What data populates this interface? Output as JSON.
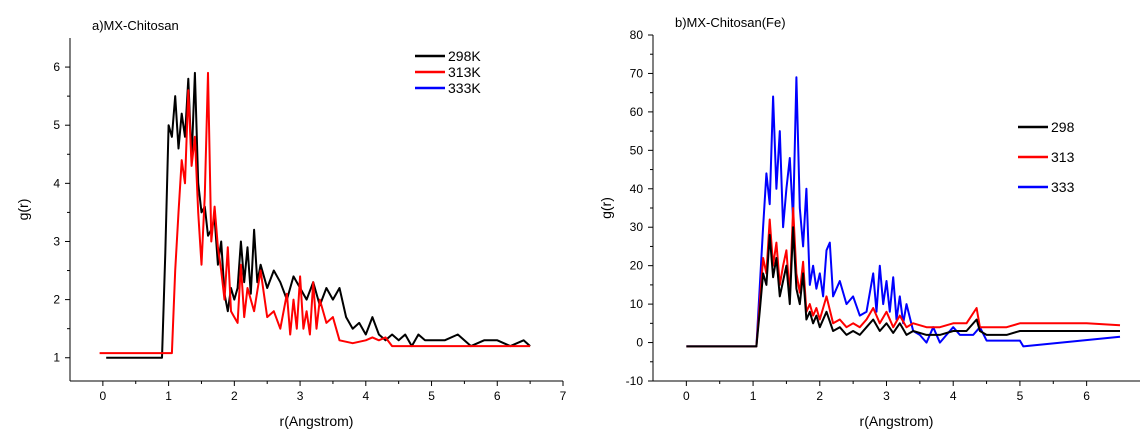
{
  "chart_data": [
    {
      "type": "line",
      "title": "a)MX-Chitosan",
      "xlabel": "r(Angstrom)",
      "ylabel": "g(r)",
      "xlim": [
        -0.5,
        7
      ],
      "ylim": [
        0.6,
        6.5
      ],
      "xticks": [
        0,
        1,
        2,
        3,
        4,
        5,
        6,
        7
      ],
      "yticks": [
        1,
        2,
        3,
        4,
        5,
        6
      ],
      "legend_position": "top-right",
      "series": [
        {
          "name": "298K",
          "color": "#000000",
          "x": [
            0.05,
            0.9,
            0.95,
            1.0,
            1.05,
            1.1,
            1.15,
            1.2,
            1.25,
            1.3,
            1.35,
            1.4,
            1.45,
            1.5,
            1.55,
            1.6,
            1.65,
            1.7,
            1.75,
            1.8,
            1.85,
            1.9,
            1.95,
            2.0,
            2.05,
            2.1,
            2.15,
            2.2,
            2.25,
            2.3,
            2.35,
            2.4,
            2.5,
            2.6,
            2.7,
            2.8,
            2.9,
            3.0,
            3.1,
            3.2,
            3.3,
            3.4,
            3.5,
            3.6,
            3.7,
            3.8,
            3.9,
            4.0,
            4.1,
            4.2,
            4.3,
            4.4,
            4.5,
            4.6,
            4.7,
            4.8,
            4.9,
            5.0,
            5.2,
            5.4,
            5.6,
            5.8,
            6.0,
            6.2,
            6.4,
            6.5
          ],
          "y": [
            1.0,
            1.0,
            2.8,
            5.0,
            4.8,
            5.5,
            4.6,
            5.2,
            4.8,
            5.8,
            4.4,
            5.9,
            4.0,
            3.5,
            3.6,
            3.1,
            3.2,
            3.4,
            2.6,
            3.0,
            2.1,
            1.8,
            2.2,
            2.0,
            2.2,
            3.0,
            2.3,
            2.9,
            2.1,
            3.2,
            2.3,
            2.6,
            2.2,
            2.5,
            2.3,
            2.0,
            2.4,
            2.2,
            2.0,
            2.3,
            1.9,
            2.2,
            2.0,
            2.2,
            1.7,
            1.5,
            1.6,
            1.4,
            1.7,
            1.4,
            1.3,
            1.4,
            1.3,
            1.4,
            1.2,
            1.4,
            1.3,
            1.3,
            1.3,
            1.4,
            1.2,
            1.3,
            1.3,
            1.2,
            1.3,
            1.2
          ]
        },
        {
          "name": "313K",
          "color": "#ff0000",
          "x": [
            -0.05,
            1.05,
            1.1,
            1.15,
            1.2,
            1.25,
            1.3,
            1.35,
            1.4,
            1.45,
            1.5,
            1.55,
            1.6,
            1.65,
            1.7,
            1.75,
            1.8,
            1.85,
            1.9,
            1.95,
            2.0,
            2.05,
            2.1,
            2.15,
            2.2,
            2.3,
            2.4,
            2.5,
            2.6,
            2.7,
            2.8,
            2.85,
            2.9,
            2.95,
            3.0,
            3.05,
            3.1,
            3.15,
            3.2,
            3.25,
            3.3,
            3.4,
            3.5,
            3.6,
            3.8,
            4.0,
            4.1,
            4.2,
            4.3,
            4.4,
            4.5,
            4.7,
            5.0,
            5.5,
            6.0,
            6.5
          ],
          "y": [
            1.08,
            1.08,
            2.5,
            3.5,
            4.4,
            4.0,
            5.6,
            4.3,
            4.8,
            3.5,
            2.6,
            3.8,
            5.9,
            3.0,
            3.6,
            2.9,
            2.5,
            2.0,
            2.9,
            1.8,
            1.7,
            1.6,
            2.6,
            1.7,
            2.2,
            1.8,
            2.5,
            1.7,
            1.8,
            1.5,
            2.1,
            1.4,
            2.0,
            1.5,
            2.4,
            1.5,
            1.8,
            1.4,
            2.3,
            1.5,
            2.0,
            1.6,
            1.7,
            1.3,
            1.25,
            1.3,
            1.35,
            1.3,
            1.35,
            1.2,
            1.2,
            1.2,
            1.2,
            1.2,
            1.2,
            1.2
          ]
        },
        {
          "name": "333K",
          "color": "#0000ff",
          "x": [],
          "y": []
        }
      ]
    },
    {
      "type": "line",
      "title": "b)MX-Chitosan(Fe)",
      "xlabel": "r(Angstrom)",
      "ylabel": "g(r)",
      "xlim": [
        -0.5,
        6.8
      ],
      "ylim": [
        -10,
        80
      ],
      "xticks": [
        0,
        1,
        2,
        3,
        4,
        5,
        6
      ],
      "yticks": [
        -10,
        0,
        10,
        20,
        30,
        40,
        50,
        60,
        70,
        80
      ],
      "legend_position": "right",
      "series": [
        {
          "name": "298",
          "color": "#000000",
          "x": [
            0.0,
            1.05,
            1.1,
            1.15,
            1.2,
            1.25,
            1.3,
            1.35,
            1.4,
            1.45,
            1.5,
            1.55,
            1.6,
            1.65,
            1.7,
            1.75,
            1.8,
            1.85,
            1.9,
            1.95,
            2.0,
            2.1,
            2.2,
            2.3,
            2.4,
            2.5,
            2.6,
            2.7,
            2.8,
            2.9,
            3.0,
            3.1,
            3.2,
            3.3,
            3.4,
            3.6,
            3.8,
            4.0,
            4.2,
            4.35,
            4.4,
            4.5,
            4.8,
            5.0,
            5.5,
            6.0,
            6.5
          ],
          "y": [
            -1.0,
            -1.0,
            8.0,
            18.0,
            15.0,
            28.0,
            17.0,
            22.0,
            12.0,
            16.0,
            20.0,
            10.0,
            30.0,
            14.0,
            10.0,
            18.0,
            6.0,
            8.0,
            5.0,
            7.0,
            4.0,
            8.0,
            3.0,
            4.0,
            2.0,
            3.0,
            2.0,
            4.0,
            6.0,
            3.0,
            5.0,
            2.5,
            5.0,
            2.0,
            3.0,
            2.0,
            2.0,
            3.0,
            3.0,
            6.0,
            3.0,
            2.0,
            2.0,
            3.0,
            3.0,
            3.0,
            3.0
          ]
        },
        {
          "name": "313",
          "color": "#ff0000",
          "x": [
            0.0,
            1.05,
            1.1,
            1.15,
            1.2,
            1.25,
            1.3,
            1.35,
            1.4,
            1.45,
            1.5,
            1.55,
            1.6,
            1.65,
            1.7,
            1.75,
            1.8,
            1.85,
            1.9,
            1.95,
            2.0,
            2.1,
            2.2,
            2.3,
            2.4,
            2.5,
            2.6,
            2.7,
            2.8,
            2.9,
            3.0,
            3.1,
            3.2,
            3.3,
            3.4,
            3.6,
            3.8,
            4.0,
            4.2,
            4.35,
            4.4,
            4.5,
            4.8,
            5.0,
            5.5,
            6.0,
            6.5
          ],
          "y": [
            -1.0,
            -1.0,
            10.0,
            22.0,
            18.0,
            32.0,
            20.0,
            26.0,
            15.0,
            20.0,
            24.0,
            12.0,
            35.0,
            18.0,
            13.0,
            21.0,
            8.0,
            10.0,
            7.0,
            9.0,
            6.0,
            12.0,
            5.0,
            6.0,
            4.0,
            5.0,
            4.0,
            6.0,
            9.0,
            5.0,
            8.0,
            4.0,
            7.0,
            4.0,
            5.0,
            4.0,
            4.0,
            5.0,
            5.0,
            9.0,
            4.0,
            4.0,
            4.0,
            5.0,
            5.0,
            5.0,
            4.5
          ]
        },
        {
          "name": "333",
          "color": "#0000ff",
          "x": [
            0.0,
            1.05,
            1.15,
            1.2,
            1.25,
            1.3,
            1.35,
            1.4,
            1.45,
            1.5,
            1.55,
            1.6,
            1.65,
            1.7,
            1.75,
            1.8,
            1.85,
            1.9,
            1.95,
            2.0,
            2.05,
            2.1,
            2.15,
            2.2,
            2.3,
            2.4,
            2.5,
            2.6,
            2.7,
            2.8,
            2.85,
            2.9,
            2.95,
            3.0,
            3.05,
            3.1,
            3.15,
            3.2,
            3.25,
            3.3,
            3.4,
            3.5,
            3.6,
            3.7,
            3.8,
            3.9,
            4.0,
            4.1,
            4.2,
            4.3,
            4.4,
            4.5,
            4.6,
            4.7,
            5.0,
            5.05,
            6.5
          ],
          "y": [
            -1.0,
            -1.0,
            30.0,
            44.0,
            36.0,
            64.0,
            40.0,
            55.0,
            30.0,
            40.0,
            48.0,
            32.0,
            69.0,
            35.0,
            25.0,
            40.0,
            15.0,
            20.0,
            14.0,
            18.0,
            12.0,
            24.0,
            26.0,
            12.0,
            16.0,
            10.0,
            12.0,
            7.0,
            8.0,
            18.0,
            8.0,
            20.0,
            10.0,
            16.0,
            8.0,
            17.0,
            6.0,
            12.0,
            5.0,
            10.0,
            3.0,
            2.0,
            0.0,
            4.0,
            0.0,
            2.0,
            4.0,
            2.0,
            2.0,
            2.0,
            4.0,
            0.5,
            0.5,
            0.5,
            0.5,
            -1.0,
            1.5
          ]
        }
      ]
    }
  ]
}
